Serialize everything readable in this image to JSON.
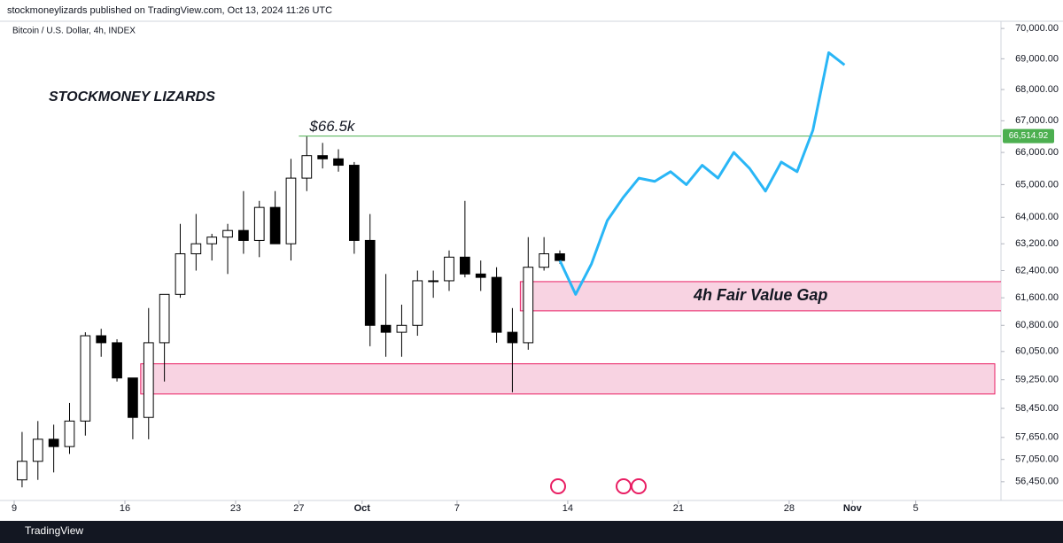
{
  "header": {
    "publisher": "stockmoneylizards published on TradingView.com, Oct 13, 2024 11:26 UTC"
  },
  "footer": {
    "brand": "TradingView"
  },
  "chart_data": {
    "type": "candlestick",
    "title": "Bitcoin / U.S. Dollar, 4h, INDEX",
    "annotation": "STOCKMONEY LIZARDS",
    "log": true,
    "x": [
      "2024-09-09",
      "2024-09-10",
      "2024-09-11",
      "2024-09-12",
      "2024-09-13",
      "2024-09-14",
      "2024-09-15",
      "2024-09-16",
      "2024-09-17",
      "2024-09-18",
      "2024-09-19",
      "2024-09-20",
      "2024-09-21",
      "2024-09-22",
      "2024-09-23",
      "2024-09-24",
      "2024-09-25",
      "2024-09-26",
      "2024-09-27",
      "2024-09-28",
      "2024-09-29",
      "2024-09-30",
      "2024-10-01",
      "2024-10-02",
      "2024-10-03",
      "2024-10-04",
      "2024-10-05",
      "2024-10-06",
      "2024-10-07",
      "2024-10-08",
      "2024-10-09",
      "2024-10-10",
      "2024-10-11",
      "2024-10-12",
      "2024-10-13"
    ],
    "open": [
      56500,
      57000,
      57600,
      57400,
      58100,
      60500,
      60300,
      59300,
      58200,
      60300,
      61700,
      62900,
      63200,
      63400,
      63600,
      63300,
      64300,
      63200,
      65200,
      65900,
      65800,
      65600,
      63300,
      60800,
      60600,
      60800,
      62100,
      62100,
      62800,
      62300,
      62200,
      60600,
      60300,
      62500,
      62900
    ],
    "high": [
      57800,
      58100,
      58000,
      58600,
      60600,
      60700,
      60400,
      59300,
      61300,
      61700,
      63800,
      64100,
      63500,
      63800,
      64800,
      64500,
      64800,
      65800,
      66500,
      66300,
      66100,
      65700,
      64100,
      62300,
      61400,
      62400,
      62400,
      63000,
      64500,
      62700,
      62500,
      61300,
      63400,
      63400,
      63000
    ],
    "low": [
      56300,
      56500,
      56700,
      57200,
      57700,
      59900,
      59200,
      57600,
      57600,
      59200,
      61600,
      62400,
      62700,
      62300,
      62900,
      62800,
      63200,
      62700,
      64800,
      65500,
      65400,
      62900,
      60200,
      59900,
      59900,
      60500,
      61600,
      61800,
      62200,
      61800,
      60300,
      58900,
      60100,
      62400,
      62600
    ],
    "close": [
      57000,
      57600,
      57400,
      58100,
      60500,
      60300,
      59300,
      58200,
      60300,
      61700,
      62900,
      63200,
      63400,
      63600,
      63300,
      64300,
      63200,
      65200,
      65900,
      65800,
      65600,
      63300,
      60800,
      60600,
      60800,
      62100,
      62100,
      62800,
      62300,
      62200,
      60600,
      60300,
      62500,
      62900,
      62700
    ],
    "up_color": "#ffffff",
    "down_color": "#000000",
    "projection": {
      "color": "#29b6f6",
      "x": [
        "2024-10-13",
        "2024-10-14",
        "2024-10-15",
        "2024-10-16",
        "2024-10-17",
        "2024-10-18",
        "2024-10-19",
        "2024-10-20",
        "2024-10-21",
        "2024-10-22",
        "2024-10-23",
        "2024-10-24",
        "2024-10-25",
        "2024-10-26",
        "2024-10-27",
        "2024-10-28",
        "2024-10-29",
        "2024-10-30",
        "2024-10-31"
      ],
      "values": [
        62700,
        61700,
        62600,
        63900,
        64600,
        65200,
        65100,
        65400,
        65000,
        65600,
        65200,
        66000,
        65500,
        64800,
        65700,
        65400,
        66700,
        69200,
        68800
      ]
    },
    "level": {
      "value": 66514.92,
      "label": "66,514.92",
      "annotation": "$66.5k",
      "start": "2024-09-27",
      "color": "#4caf50"
    },
    "zones": [
      {
        "label": "4h Fair Value Gap",
        "x": [
          "2024-10-11",
          "2024-11-11"
        ],
        "y": [
          61220,
          62075
        ]
      },
      {
        "x": [
          "2024-09-17",
          "2024-11-10"
        ],
        "y": [
          58850,
          59700
        ]
      }
    ],
    "zone_color": "#e91e63",
    "xlim": [
      "2024-09-09",
      "2024-11-10"
    ],
    "xticks": [
      {
        "value": "2024-09-09",
        "label": "9"
      },
      {
        "value": "2024-09-16",
        "label": "16"
      },
      {
        "value": "2024-09-23",
        "label": "23"
      },
      {
        "value": "2024-09-27",
        "label": "27"
      },
      {
        "value": "2024-10-01",
        "label": "Oct"
      },
      {
        "value": "2024-10-07",
        "label": "7"
      },
      {
        "value": "2024-10-14",
        "label": "14"
      },
      {
        "value": "2024-10-21",
        "label": "21"
      },
      {
        "value": "2024-10-28",
        "label": "28"
      },
      {
        "value": "2024-11-01",
        "label": "Nov"
      },
      {
        "value": "2024-11-05",
        "label": "5"
      }
    ],
    "ylim": [
      55950,
      70240
    ],
    "yticks": [
      {
        "value": 70000,
        "label": "70,000.00"
      },
      {
        "value": 69000,
        "label": "69,000.00"
      },
      {
        "value": 68000,
        "label": "68,000.00"
      },
      {
        "value": 67000,
        "label": "67,000.00"
      },
      {
        "value": 66000,
        "label": "66,000.00"
      },
      {
        "value": 65000,
        "label": "65,000.00"
      },
      {
        "value": 64000,
        "label": "64,000.00"
      },
      {
        "value": 63200,
        "label": "63,200.00"
      },
      {
        "value": 62400,
        "label": "62,400.00"
      },
      {
        "value": 61600,
        "label": "61,600.00"
      },
      {
        "value": 60800,
        "label": "60,800.00"
      },
      {
        "value": 60050,
        "label": "60,050.00"
      },
      {
        "value": 59250,
        "label": "59,250.00"
      },
      {
        "value": 58450,
        "label": "58,450.00"
      },
      {
        "value": 57650,
        "label": "57,650.00"
      },
      {
        "value": 57050,
        "label": "57,050.00"
      },
      {
        "value": 56450,
        "label": "56,450.00"
      }
    ]
  }
}
